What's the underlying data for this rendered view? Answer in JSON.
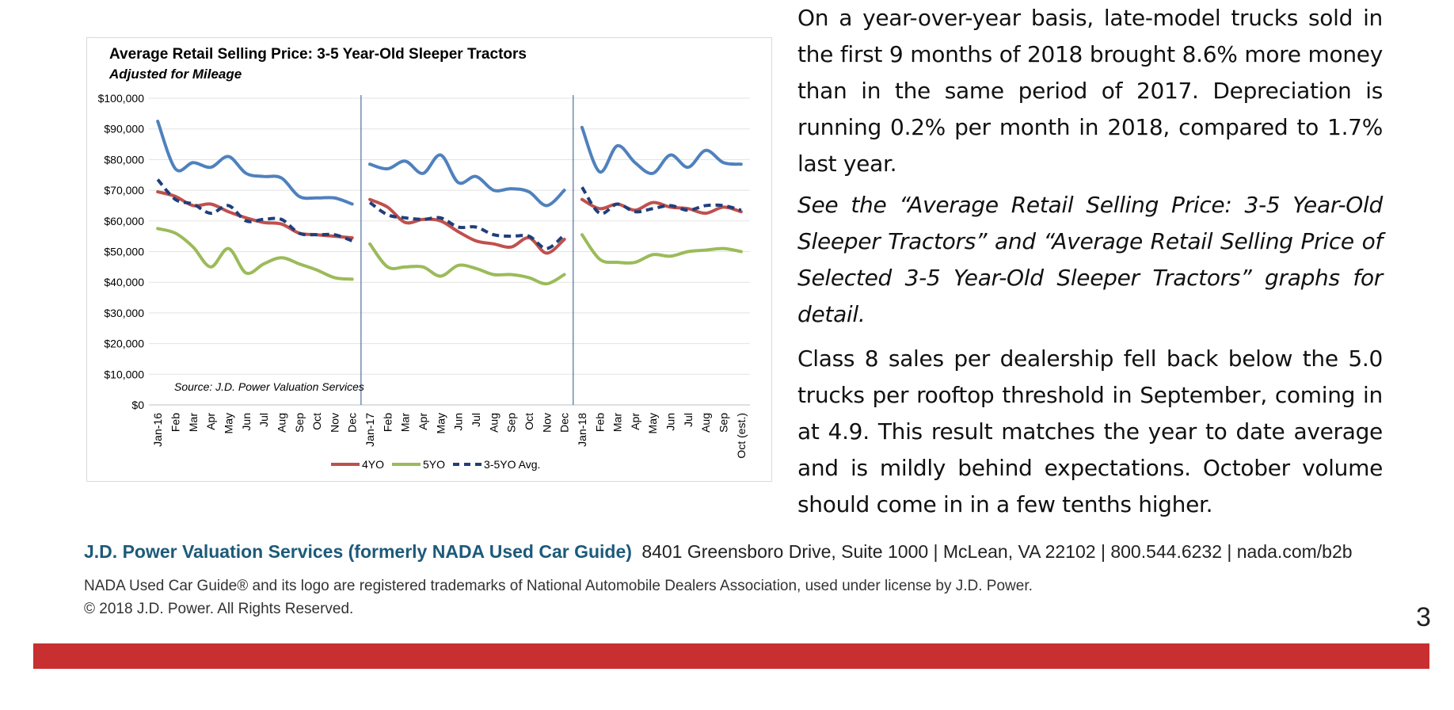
{
  "text": {
    "p1": "On a year-over-year basis, late-model trucks sold in the first 9 months of 2018 brought 8.6% more money than in the same period of 2017. Depreciation is running 0.2% per month in 2018, compared to 1.7% last year.",
    "p2": "See the “Average Retail Selling Price: 3-5 Year-Old Sleeper Tractors” and “Average Retail Selling Price of Selected 3-5 Year-Old Sleeper Tractors” graphs for detail.",
    "p3": "Class 8 sales per dealership fell back below the 5.0 trucks per rooftop threshold in September, coming in at 4.9. This result matches the year to date average and is mildly behind expectations. October volume should come in in a few tenths higher."
  },
  "footer": {
    "brand": "J.D. Power Valuation Services (formerly NADA Used Car Guide)",
    "address": "8401 Greensboro Drive, Suite 1000 | McLean, VA 22102 | 800.544.6232 | nada.com/b2b",
    "trademark": "NADA Used Car Guide® and its logo are registered trademarks of National Automobile Dealers Association, used under license by J.D. Power.",
    "copyright": "© 2018 J.D. Power. All Rights Reserved.",
    "page_number": "3"
  },
  "colors": {
    "brand": "#1c5a7a",
    "bar": "#c82f31"
  },
  "chart_data": {
    "type": "line",
    "title": "Average Retail Selling Price: 3-5 Year-Old Sleeper Tractors",
    "subtitle": "Adjusted for Mileage",
    "source": "Source: J.D. Power Valuation Services",
    "ylim": [
      0,
      100000
    ],
    "y_ticks": [
      "$0",
      "$10,000",
      "$20,000",
      "$30,000",
      "$40,000",
      "$50,000",
      "$60,000",
      "$70,000",
      "$80,000",
      "$90,000",
      "$100,000"
    ],
    "grid": true,
    "legend_position": "bottom",
    "categories": [
      "Jan-16",
      "Feb",
      "Mar",
      "Apr",
      "May",
      "Jun",
      "Jul",
      "Aug",
      "Sep",
      "Oct",
      "Nov",
      "Dec",
      "Jan-17",
      "Feb",
      "Mar",
      "Apr",
      "May",
      "Jun",
      "Jul",
      "Aug",
      "Sep",
      "Oct",
      "Nov",
      "Dec",
      "Jan-18",
      "Feb",
      "Mar",
      "Apr",
      "May",
      "Jun",
      "Jul",
      "Aug",
      "Sep",
      "Oct (est.)"
    ],
    "separators_after": [
      11,
      23
    ],
    "series": [
      {
        "name": "",
        "color": "#4f81bd",
        "dashed": false,
        "values": [
          92500,
          77000,
          79000,
          77500,
          81000,
          75500,
          74500,
          74000,
          68000,
          67500,
          67500,
          65500,
          78500,
          77000,
          79500,
          75500,
          81500,
          72500,
          74500,
          70000,
          70500,
          69500,
          65000,
          70000,
          90500,
          76000,
          84500,
          79000,
          75500,
          81500,
          77500,
          83000,
          79000,
          78500
        ]
      },
      {
        "name": "4YO",
        "color": "#c0504d",
        "dashed": false,
        "values": [
          69500,
          68000,
          65000,
          65500,
          63000,
          61000,
          59500,
          59000,
          56000,
          55500,
          55000,
          54500,
          67000,
          64500,
          59500,
          60500,
          60000,
          56500,
          53500,
          52500,
          51500,
          54500,
          49500,
          54000,
          67000,
          64000,
          65500,
          63500,
          66000,
          64500,
          64000,
          62500,
          64500,
          63000
        ]
      },
      {
        "name": "5YO",
        "color": "#9bbb59",
        "dashed": false,
        "values": [
          57500,
          56000,
          51500,
          45000,
          51000,
          43000,
          46000,
          48000,
          46000,
          44000,
          41500,
          41000,
          52500,
          45000,
          45000,
          45000,
          42000,
          45500,
          44500,
          42500,
          42500,
          41500,
          39500,
          42500,
          55500,
          47500,
          46500,
          46500,
          49000,
          48500,
          50000,
          50500,
          51000,
          50000
        ]
      },
      {
        "name": "3-5YO Avg.",
        "color": "#1f3f7a",
        "dashed": true,
        "values": [
          73500,
          67000,
          65500,
          62500,
          65000,
          60000,
          60500,
          60500,
          56000,
          55500,
          55500,
          53500,
          66000,
          62000,
          61000,
          60500,
          61000,
          58000,
          58000,
          55500,
          55000,
          55000,
          51000,
          55500,
          71000,
          62500,
          65500,
          63000,
          64000,
          65000,
          63500,
          65000,
          65000,
          63500
        ]
      }
    ]
  }
}
